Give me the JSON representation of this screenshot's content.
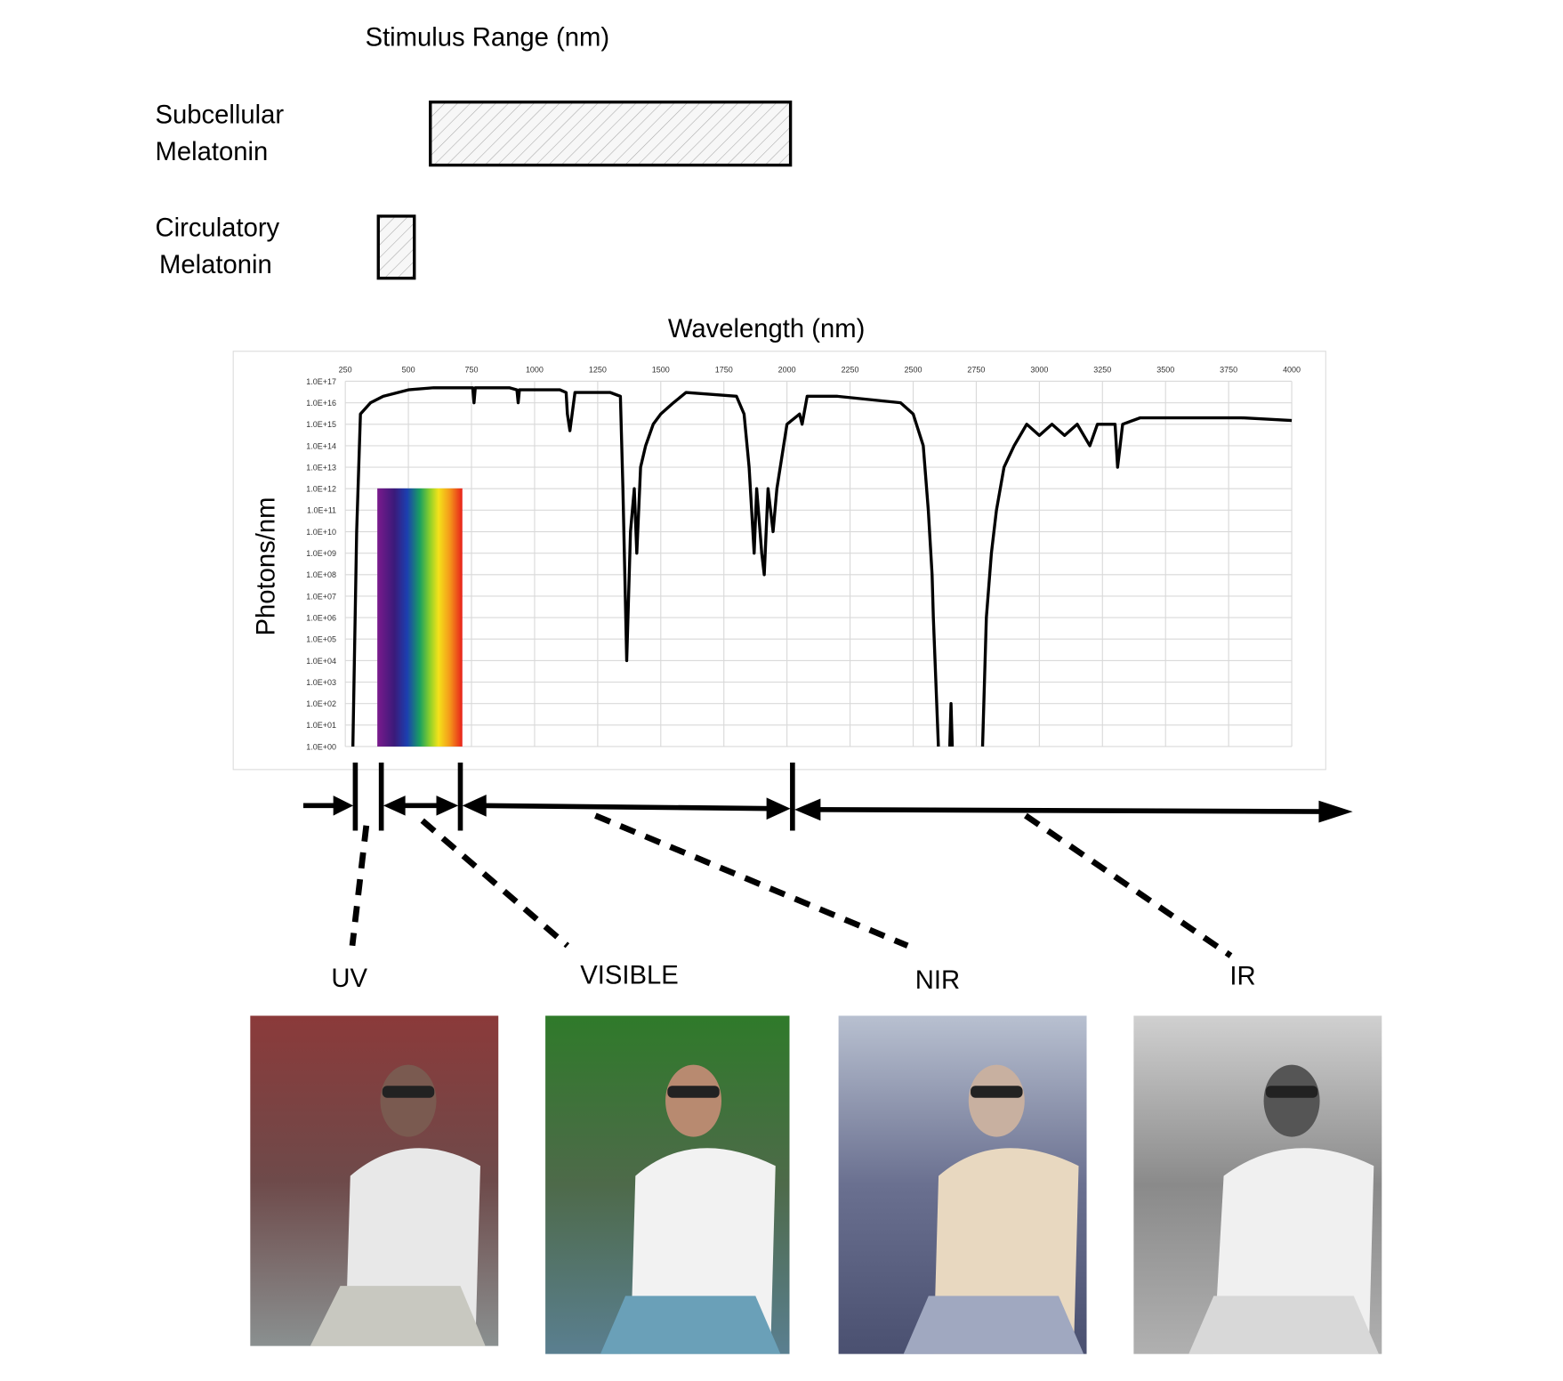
{
  "header": {
    "title": "Stimulus Range (nm)"
  },
  "stimulus": [
    {
      "label": [
        "Subcellular",
        "Melatonin"
      ]
    },
    {
      "label": [
        "Circulatory",
        "Melatonin"
      ]
    }
  ],
  "chart_data": {
    "type": "line",
    "xlabel": "Wavelength (nm)",
    "ylabel": "Photons/nm",
    "log_scale_y": true,
    "grid": true,
    "x": [
      280,
      295,
      310,
      350,
      400,
      500,
      600,
      700,
      755,
      760,
      765,
      900,
      930,
      935,
      940,
      1100,
      1125,
      1130,
      1140,
      1160,
      1300,
      1340,
      1350,
      1365,
      1380,
      1395,
      1405,
      1420,
      1440,
      1470,
      1500,
      1550,
      1600,
      1800,
      1830,
      1850,
      1870,
      1880,
      1900,
      1910,
      1925,
      1945,
      1960,
      2000,
      2050,
      2060,
      2080,
      2200,
      2450,
      2500,
      2540,
      2560,
      2575,
      2580,
      2600,
      2620,
      2645,
      2650,
      2655,
      2700,
      2775,
      2790,
      2810,
      2830,
      2860,
      2900,
      2950,
      3000,
      3050,
      3100,
      3150,
      3200,
      3230,
      3300,
      3310,
      3330,
      3400,
      3600,
      3800,
      4000
    ],
    "series": [
      {
        "color": "#000000",
        "values": [
          1,
          10000000000.0,
          3000000000000000.0,
          1e+16,
          2e+16,
          4e+16,
          5e+16,
          5e+16,
          5e+16,
          1e+16,
          5e+16,
          5e+16,
          4e+16,
          1e+16,
          4e+16,
          4e+16,
          3e+16,
          3000000000000000.0,
          500000000000000.0,
          3e+16,
          3e+16,
          2e+16,
          1000000000000.0,
          10000.0,
          10000000000.0,
          1000000000000.0,
          1000000000.0,
          10000000000000.0,
          100000000000000.0,
          1000000000000000.0,
          3000000000000000.0,
          1e+16,
          3e+16,
          2e+16,
          3000000000000000.0,
          10000000000000.0,
          1000000000.0,
          1000000000000.0,
          1000000000.0,
          100000000.0,
          1000000000000.0,
          10000000000.0,
          1000000000000.0,
          1000000000000000.0,
          3000000000000000.0,
          1000000000000000.0,
          2e+16,
          2e+16,
          1e+16,
          3000000000000000.0,
          100000000000000.0,
          100000000000.0,
          100000000.0,
          1000000.0,
          1,
          null,
          1,
          100.0,
          1,
          null,
          1,
          1000000.0,
          1000000000.0,
          100000000000.0,
          10000000000000.0,
          100000000000000.0,
          1000000000000000.0,
          300000000000000.0,
          1000000000000000.0,
          300000000000000.0,
          1000000000000000.0,
          100000000000000.0,
          1000000000000000.0,
          1000000000000000.0,
          10000000000000.0,
          1000000000000000.0,
          2000000000000000.0,
          2000000000000000.0,
          2000000000000000.0,
          1500000000000000.0
        ]
      }
    ],
    "xlim": [
      250,
      4000
    ],
    "xticks": [
      250,
      500,
      750,
      1000,
      1250,
      1500,
      1750,
      2000,
      2250,
      2500,
      2750,
      3000,
      3250,
      3500,
      3750,
      4000
    ],
    "ylim": [
      1,
      1e+17
    ],
    "yticks": [
      {
        "value": 1,
        "label": "1.0E+00"
      },
      {
        "value": 10,
        "label": "1.0E+01"
      },
      {
        "value": 100,
        "label": "1.0E+02"
      },
      {
        "value": 1000,
        "label": "1.0E+03"
      },
      {
        "value": 10000.0,
        "label": "1.0E+04"
      },
      {
        "value": 100000.0,
        "label": "1.0E+05"
      },
      {
        "value": 1000000.0,
        "label": "1.0E+06"
      },
      {
        "value": 10000000.0,
        "label": "1.0E+07"
      },
      {
        "value": 100000000.0,
        "label": "1.0E+08"
      },
      {
        "value": 1000000000.0,
        "label": "1.0E+09"
      },
      {
        "value": 10000000000.0,
        "label": "1.0E+10"
      },
      {
        "value": 100000000000.0,
        "label": "1.0E+11"
      },
      {
        "value": 1000000000000.0,
        "label": "1.0E+12"
      },
      {
        "value": 10000000000000.0,
        "label": "1.0E+13"
      },
      {
        "value": 100000000000000.0,
        "label": "1.0E+14"
      },
      {
        "value": 1000000000000000.0,
        "label": "1.0E+15"
      },
      {
        "value": 1e+16,
        "label": "1.0E+16"
      },
      {
        "value": 1e+17,
        "label": "1.0E+17"
      }
    ]
  },
  "bands": {
    "labels": [
      "UV",
      "VISIBLE",
      "NIR",
      "IR"
    ]
  }
}
